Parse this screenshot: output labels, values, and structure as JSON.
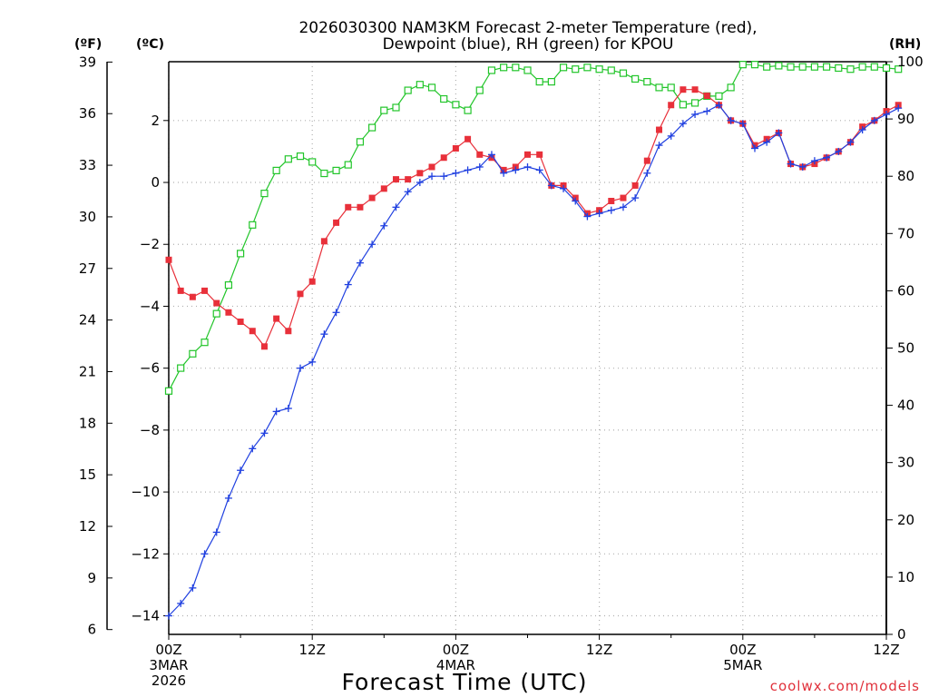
{
  "chart_data": {
    "type": "line",
    "title_line1": "2026030300 NAM3KM Forecast 2-meter Temperature (red),",
    "title_line2": "Dewpoint (blue), RH (green) for KPOU",
    "xlabel": "Forecast Time (UTC)",
    "credit": "coolwx.com/models",
    "units": {
      "fahrenheit": "(ºF)",
      "celsius": "(ºC)",
      "rh": "(RH)"
    },
    "x_range_hours": [
      0,
      60
    ],
    "celsius_range": [
      -14.6,
      3.9
    ],
    "rh_range": [
      0,
      100
    ],
    "fahrenheit_ticks": [
      "6",
      "9",
      "12",
      "15",
      "18",
      "21",
      "24",
      "27",
      "30",
      "33",
      "36",
      "39"
    ],
    "celsius_ticks": [
      "−14",
      "−12",
      "−10",
      "−8",
      "−6",
      "−4",
      "−2",
      "0",
      "2"
    ],
    "rh_ticks": [
      "0",
      "10",
      "20",
      "30",
      "40",
      "50",
      "60",
      "70",
      "80",
      "90",
      "100"
    ],
    "x_ticks": [
      {
        "hour": 0,
        "label": "00Z",
        "sub1": "3MAR",
        "sub2": "2026"
      },
      {
        "hour": 12,
        "label": "12Z",
        "sub1": "",
        "sub2": ""
      },
      {
        "hour": 24,
        "label": "00Z",
        "sub1": "4MAR",
        "sub2": ""
      },
      {
        "hour": 36,
        "label": "12Z",
        "sub1": "",
        "sub2": ""
      },
      {
        "hour": 48,
        "label": "00Z",
        "sub1": "5MAR",
        "sub2": ""
      },
      {
        "hour": 60,
        "label": "12Z",
        "sub1": "",
        "sub2": ""
      }
    ],
    "series": [
      {
        "name": "Temperature",
        "axis": "celsius",
        "color": "#e8303a",
        "marker": "filled-square",
        "values": [
          -2.5,
          -3.5,
          -3.7,
          -3.5,
          -3.9,
          -4.2,
          -4.5,
          -4.8,
          -5.3,
          -4.4,
          -4.8,
          -3.6,
          -3.2,
          -1.9,
          -1.3,
          -0.8,
          -0.8,
          -0.5,
          -0.2,
          0.1,
          0.1,
          0.3,
          0.5,
          0.8,
          1.1,
          1.4,
          0.9,
          0.8,
          0.4,
          0.5,
          0.9,
          0.9,
          -0.1,
          -0.1,
          -0.5,
          -1.0,
          -0.9,
          -0.6,
          -0.5,
          -0.1,
          0.7,
          1.7,
          2.5,
          3.0,
          3.0,
          2.8,
          2.5,
          2.0,
          1.9,
          1.2,
          1.4,
          1.6,
          0.6,
          0.5,
          0.6,
          0.8,
          1.0,
          1.3,
          1.8,
          2.0,
          2.3,
          2.5
        ]
      },
      {
        "name": "Dewpoint",
        "axis": "celsius",
        "color": "#2040e0",
        "marker": "plus",
        "values": [
          -14.0,
          -13.6,
          -13.1,
          -12.0,
          -11.3,
          -10.2,
          -9.3,
          -8.6,
          -8.1,
          -7.4,
          -7.3,
          -6.0,
          -5.8,
          -4.9,
          -4.2,
          -3.3,
          -2.6,
          -2.0,
          -1.4,
          -0.8,
          -0.3,
          0.0,
          0.2,
          0.2,
          0.3,
          0.4,
          0.5,
          0.9,
          0.3,
          0.4,
          0.5,
          0.4,
          -0.1,
          -0.2,
          -0.6,
          -1.1,
          -1.0,
          -0.9,
          -0.8,
          -0.5,
          0.3,
          1.2,
          1.5,
          1.9,
          2.2,
          2.3,
          2.5,
          2.0,
          1.9,
          1.1,
          1.3,
          1.6,
          0.6,
          0.5,
          0.7,
          0.8,
          1.0,
          1.3,
          1.7,
          2.0,
          2.2,
          2.4
        ]
      },
      {
        "name": "RH",
        "axis": "rh",
        "color": "#22c52a",
        "marker": "open-square",
        "values": [
          42.5,
          46.5,
          49,
          51,
          56,
          61,
          66.5,
          71.5,
          77,
          81,
          83,
          83.5,
          82.5,
          80.5,
          81,
          82,
          86,
          88.5,
          91.5,
          92,
          95,
          96,
          95.5,
          93.5,
          92.5,
          91.5,
          95,
          98.5,
          99,
          99,
          98.5,
          96.5,
          96.5,
          99,
          98.7,
          99,
          98.7,
          98.5,
          98,
          97,
          96.5,
          95.5,
          95.5,
          92.5,
          92.8,
          94,
          94,
          95.5,
          99.5,
          99.5,
          99.1,
          99.3,
          99.1,
          99.1,
          99.1,
          99.1,
          98.9,
          98.7,
          99.1,
          99.1,
          98.9,
          98.7
        ]
      }
    ]
  }
}
